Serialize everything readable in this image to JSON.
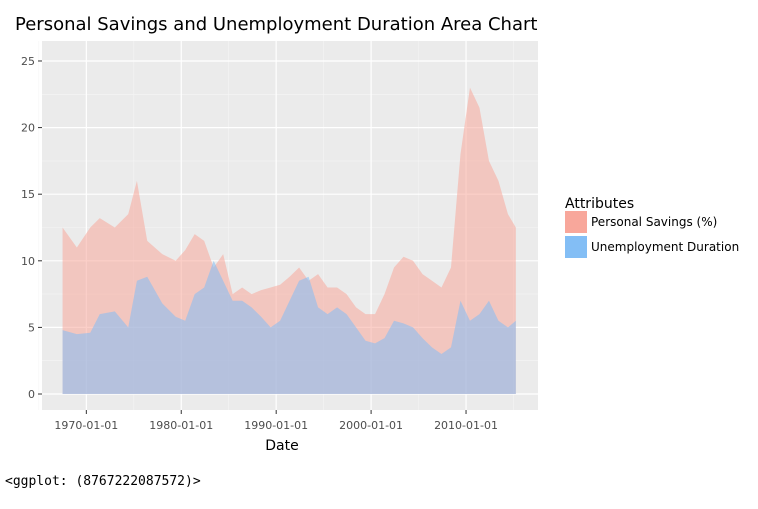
{
  "chart_data": {
    "type": "area",
    "title": "Personal Savings and Unemployment Duration Area Chart",
    "xlabel": "Date",
    "ylabel": "",
    "legend": {
      "title": "Attributes",
      "placement": "right"
    },
    "x_ticks": [
      "1970-01-01",
      "1980-01-01",
      "1990-01-01",
      "2000-01-01",
      "2010-01-01"
    ],
    "y_ticks": [
      0,
      5,
      10,
      15,
      20,
      25
    ],
    "ylim": [
      -1.2,
      26.5
    ],
    "xlim": [
      "1965-05-01",
      "2017-08-01"
    ],
    "series": [
      {
        "name": "Personal Savings (%)",
        "color": "#F8A79B",
        "x": [
          "1967-07-01",
          "1969-01-01",
          "1970-06-01",
          "1971-06-01",
          "1973-01-01",
          "1974-06-01",
          "1975-05-01",
          "1976-06-01",
          "1978-01-01",
          "1979-06-01",
          "1980-06-01",
          "1981-06-01",
          "1982-06-01",
          "1983-06-01",
          "1984-06-01",
          "1985-06-01",
          "1986-06-01",
          "1987-06-01",
          "1988-06-01",
          "1989-06-01",
          "1990-06-01",
          "1991-06-01",
          "1992-06-01",
          "1993-06-01",
          "1994-06-01",
          "1995-06-01",
          "1996-06-01",
          "1997-06-01",
          "1998-06-01",
          "1999-06-01",
          "2000-06-01",
          "2001-06-01",
          "2002-06-01",
          "2003-06-01",
          "2004-06-01",
          "2005-06-01",
          "2006-06-01",
          "2007-06-01",
          "2008-06-01",
          "2009-06-01",
          "2010-06-01",
          "2011-06-01",
          "2012-06-01",
          "2013-06-01",
          "2014-06-01",
          "2015-04-01"
        ],
        "values": [
          12.5,
          11.0,
          12.5,
          13.2,
          12.5,
          13.5,
          16.0,
          11.5,
          10.5,
          10.0,
          10.8,
          12.0,
          11.5,
          9.5,
          10.5,
          7.5,
          8.0,
          7.5,
          7.8,
          8.0,
          8.2,
          8.8,
          9.5,
          8.5,
          9.0,
          8.0,
          8.0,
          7.5,
          6.5,
          6.0,
          6.0,
          7.5,
          9.5,
          10.3,
          10.0,
          9.0,
          8.5,
          8.0,
          9.5,
          18.0,
          23.0,
          21.5,
          17.5,
          16.0,
          13.5,
          12.5
        ]
      },
      {
        "name": "Unemployment Duration",
        "color": "#83BEF5",
        "x": [
          "1967-07-01",
          "1969-01-01",
          "1970-06-01",
          "1971-06-01",
          "1973-01-01",
          "1974-06-01",
          "1975-05-01",
          "1976-06-01",
          "1978-01-01",
          "1979-06-01",
          "1980-06-01",
          "1981-06-01",
          "1982-06-01",
          "1983-06-01",
          "1984-06-01",
          "1985-06-01",
          "1986-06-01",
          "1987-06-01",
          "1988-06-01",
          "1989-06-01",
          "1990-06-01",
          "1991-06-01",
          "1992-06-01",
          "1993-06-01",
          "1994-06-01",
          "1995-06-01",
          "1996-06-01",
          "1997-06-01",
          "1998-06-01",
          "1999-06-01",
          "2000-06-01",
          "2001-06-01",
          "2002-06-01",
          "2003-06-01",
          "2004-06-01",
          "2005-06-01",
          "2006-06-01",
          "2007-06-01",
          "2008-06-01",
          "2009-06-01",
          "2010-06-01",
          "2011-06-01",
          "2012-06-01",
          "2013-06-01",
          "2014-06-01",
          "2015-04-01"
        ],
        "values": [
          4.8,
          4.5,
          4.6,
          6.0,
          6.2,
          5.0,
          8.5,
          8.8,
          6.8,
          5.8,
          5.5,
          7.5,
          8.0,
          10.0,
          8.5,
          7.0,
          7.0,
          6.5,
          5.8,
          5.0,
          5.5,
          7.0,
          8.5,
          8.8,
          6.5,
          6.0,
          6.5,
          6.0,
          5.0,
          4.0,
          3.8,
          4.2,
          5.5,
          5.3,
          5.0,
          4.2,
          3.5,
          3.0,
          3.5,
          7.0,
          5.5,
          6.0,
          7.0,
          5.5,
          5.0,
          5.5
        ]
      }
    ]
  },
  "repr_text": "<ggplot: (8767222087572)>"
}
